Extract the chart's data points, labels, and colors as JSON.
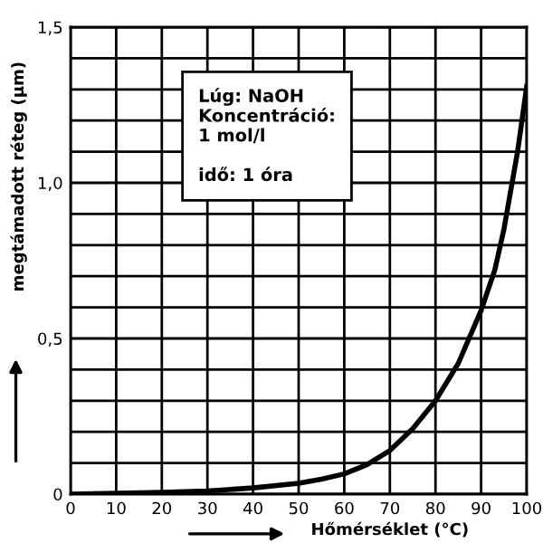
{
  "chart_data": {
    "type": "line",
    "xlabel": "Hőmérséklet (°C)",
    "ylabel": "megtámadott réteg (µm)",
    "annotations": [
      "Lúg: NaOH\nKoncentráció:\n1 mol/l\n\nidő: 1 óra"
    ],
    "x": [
      0,
      10,
      20,
      30,
      40,
      50,
      55,
      60,
      65,
      70,
      75,
      80,
      85,
      90,
      93,
      95,
      98,
      100
    ],
    "series": [
      {
        "color": "#000000",
        "values": [
          0.0,
          0.003,
          0.006,
          0.01,
          0.02,
          0.035,
          0.048,
          0.065,
          0.095,
          0.14,
          0.21,
          0.3,
          0.42,
          0.59,
          0.72,
          0.85,
          1.1,
          1.31
        ]
      }
    ],
    "xlim": [
      0,
      100
    ],
    "ylim": [
      0,
      1.5
    ],
    "xticks": [
      0,
      10,
      20,
      30,
      40,
      50,
      60,
      70,
      80,
      90,
      100
    ],
    "yticks": [
      {
        "value": 0,
        "label": "0"
      },
      {
        "value": 0.1,
        "label": null
      },
      {
        "value": 0.2,
        "label": null
      },
      {
        "value": 0.3,
        "label": null
      },
      {
        "value": 0.4,
        "label": null
      },
      {
        "value": 0.5,
        "label": "0,5"
      },
      {
        "value": 0.6,
        "label": null
      },
      {
        "value": 0.7,
        "label": null
      },
      {
        "value": 0.8,
        "label": null
      },
      {
        "value": 0.9,
        "label": null
      },
      {
        "value": 1.0,
        "label": "1,0"
      },
      {
        "value": 1.1,
        "label": null
      },
      {
        "value": 1.2,
        "label": null
      },
      {
        "value": 1.3,
        "label": null
      },
      {
        "value": 1.4,
        "label": null
      },
      {
        "value": 1.5,
        "label": "1,5"
      }
    ],
    "grid": true,
    "marker": "none",
    "line_style": "solid"
  }
}
